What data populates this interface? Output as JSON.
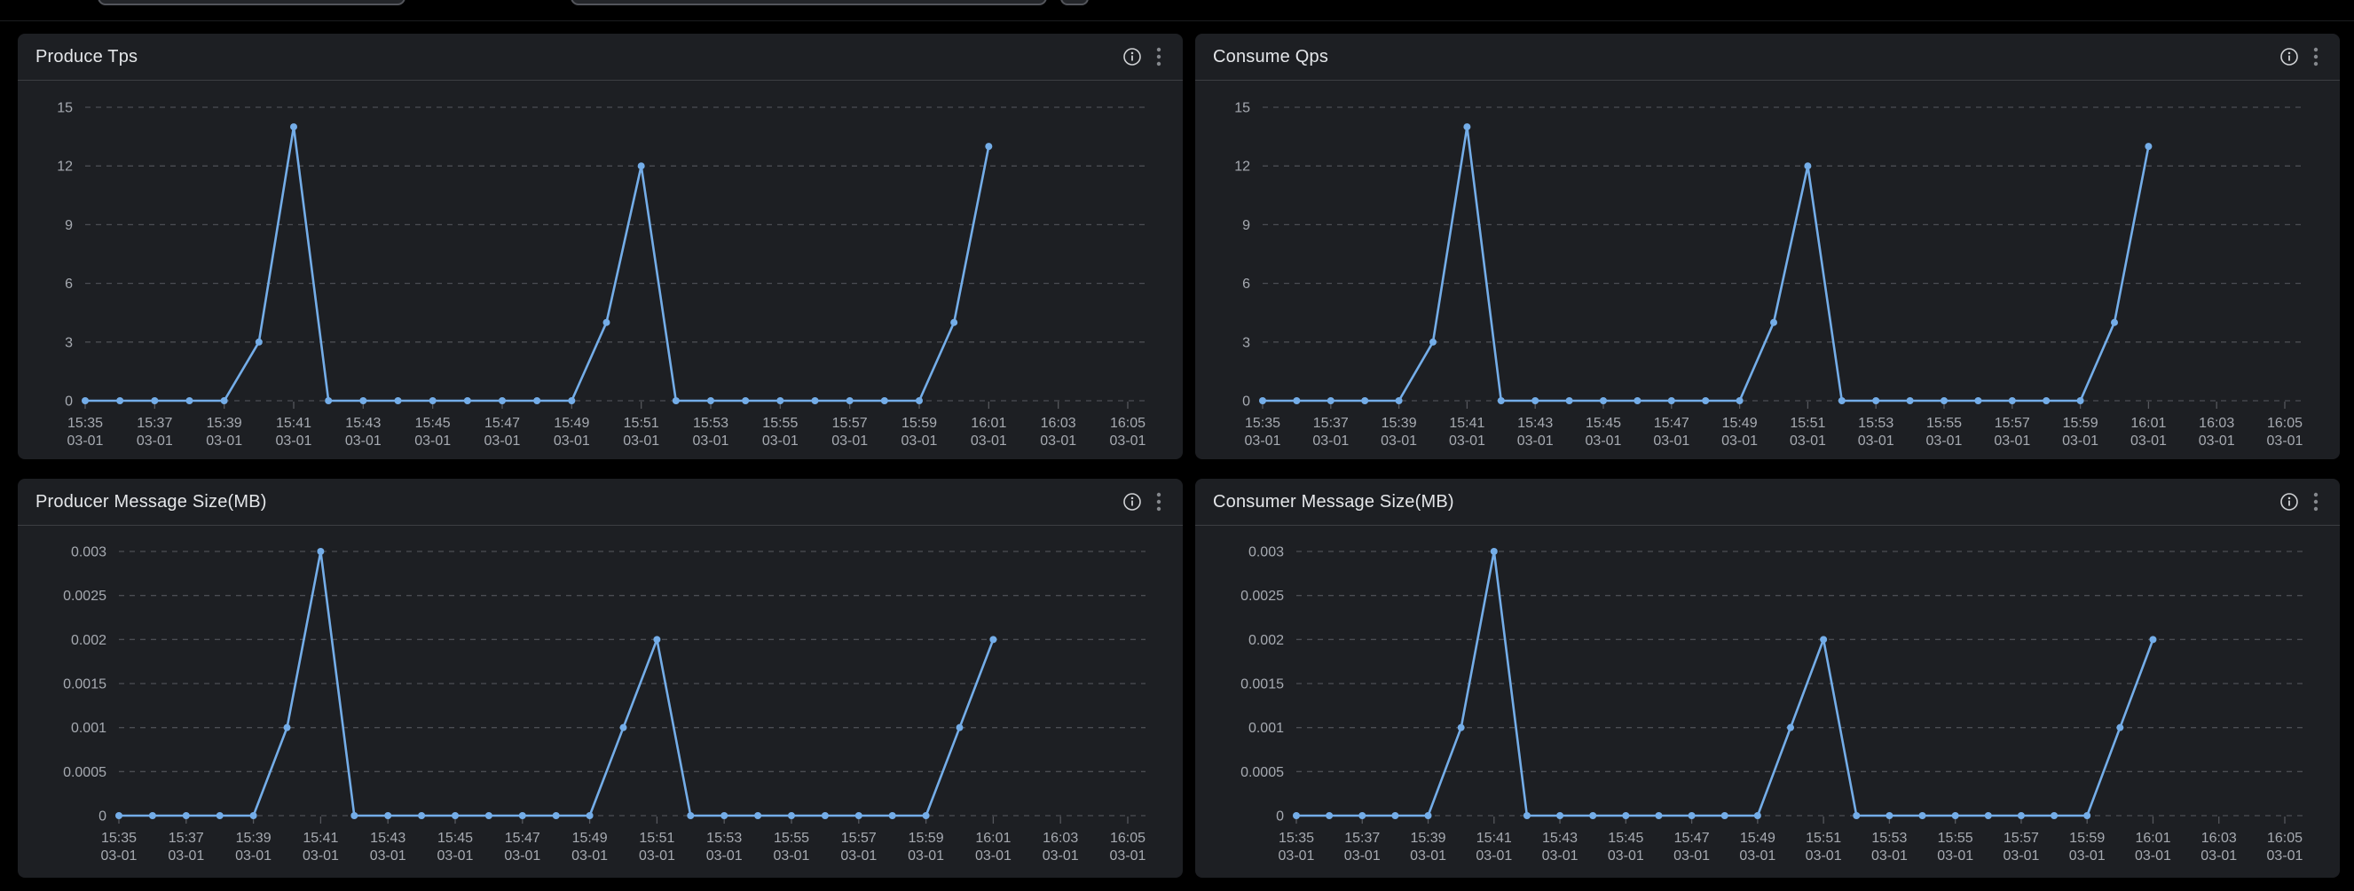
{
  "colors": {
    "page_bg": "#000000",
    "panel_bg": "#1d1f23",
    "panel_divider": "#3c3e42",
    "title_text": "#e4e6e9",
    "axis_label": "#a6aab1",
    "gridline": "#4b4d53",
    "tick": "#55575c",
    "series_line": "#74ade8",
    "info_icon": "#cfd1d4",
    "kebab_icon": "#85888d"
  },
  "topbar": {
    "elements": [
      {
        "name": "toolbar-input-primary"
      },
      {
        "name": "toolbar-input-secondary"
      },
      {
        "name": "toolbar-mini-button"
      }
    ]
  },
  "panels": [
    {
      "title": "Produce Tps",
      "icons": {
        "info": "info-icon",
        "menu": "kebab-menu-icon"
      }
    },
    {
      "title": "Consume Qps",
      "icons": {
        "info": "info-icon",
        "menu": "kebab-menu-icon"
      }
    },
    {
      "title": "Producer Message Size(MB)",
      "icons": {
        "info": "info-icon",
        "menu": "kebab-menu-icon"
      }
    },
    {
      "title": "Consumer Message Size(MB)",
      "icons": {
        "info": "info-icon",
        "menu": "kebab-menu-icon"
      }
    }
  ],
  "chart_data": [
    {
      "type": "line",
      "title": "Produce Tps",
      "xlabel": "",
      "ylabel": "",
      "x": [
        "15:35",
        "15:36",
        "15:37",
        "15:38",
        "15:39",
        "15:40",
        "15:41",
        "15:42",
        "15:43",
        "15:44",
        "15:45",
        "15:46",
        "15:47",
        "15:48",
        "15:49",
        "15:50",
        "15:51",
        "15:52",
        "15:53",
        "15:54",
        "15:55",
        "15:56",
        "15:57",
        "15:58",
        "15:59",
        "16:00",
        "16:01"
      ],
      "values": [
        0,
        0,
        0,
        0,
        0,
        3,
        14,
        0,
        0,
        0,
        0,
        0,
        0,
        0,
        0,
        4,
        12,
        0,
        0,
        0,
        0,
        0,
        0,
        0,
        0,
        4,
        13
      ],
      "axis_x_labels": [
        "15:35",
        "15:37",
        "15:39",
        "15:41",
        "15:43",
        "15:45",
        "15:47",
        "15:49",
        "15:51",
        "15:53",
        "15:55",
        "15:57",
        "15:59",
        "16:01",
        "16:03",
        "16:05"
      ],
      "axis_x_label_line2": "03-01",
      "axis_x_range": [
        "15:35",
        "16:05"
      ],
      "y_tick_labels": [
        "0",
        "3",
        "6",
        "9",
        "12",
        "15"
      ],
      "ylim": [
        0,
        15
      ],
      "grid": true,
      "legend": false,
      "line_color": "#74ade8"
    },
    {
      "type": "line",
      "title": "Consume Qps",
      "xlabel": "",
      "ylabel": "",
      "x": [
        "15:35",
        "15:36",
        "15:37",
        "15:38",
        "15:39",
        "15:40",
        "15:41",
        "15:42",
        "15:43",
        "15:44",
        "15:45",
        "15:46",
        "15:47",
        "15:48",
        "15:49",
        "15:50",
        "15:51",
        "15:52",
        "15:53",
        "15:54",
        "15:55",
        "15:56",
        "15:57",
        "15:58",
        "15:59",
        "16:00",
        "16:01"
      ],
      "values": [
        0,
        0,
        0,
        0,
        0,
        3,
        14,
        0,
        0,
        0,
        0,
        0,
        0,
        0,
        0,
        4,
        12,
        0,
        0,
        0,
        0,
        0,
        0,
        0,
        0,
        4,
        13
      ],
      "axis_x_labels": [
        "15:35",
        "15:37",
        "15:39",
        "15:41",
        "15:43",
        "15:45",
        "15:47",
        "15:49",
        "15:51",
        "15:53",
        "15:55",
        "15:57",
        "15:59",
        "16:01",
        "16:03",
        "16:05"
      ],
      "axis_x_label_line2": "03-01",
      "axis_x_range": [
        "15:35",
        "16:05"
      ],
      "y_tick_labels": [
        "0",
        "3",
        "6",
        "9",
        "12",
        "15"
      ],
      "ylim": [
        0,
        15
      ],
      "grid": true,
      "legend": false,
      "line_color": "#74ade8"
    },
    {
      "type": "line",
      "title": "Producer Message Size(MB)",
      "xlabel": "",
      "ylabel": "",
      "x": [
        "15:35",
        "15:36",
        "15:37",
        "15:38",
        "15:39",
        "15:40",
        "15:41",
        "15:42",
        "15:43",
        "15:44",
        "15:45",
        "15:46",
        "15:47",
        "15:48",
        "15:49",
        "15:50",
        "15:51",
        "15:52",
        "15:53",
        "15:54",
        "15:55",
        "15:56",
        "15:57",
        "15:58",
        "15:59",
        "16:00",
        "16:01"
      ],
      "values": [
        0,
        0,
        0,
        0,
        0,
        0.001,
        0.003,
        0,
        0,
        0,
        0,
        0,
        0,
        0,
        0,
        0.001,
        0.002,
        0,
        0,
        0,
        0,
        0,
        0,
        0,
        0,
        0.001,
        0.002
      ],
      "axis_x_labels": [
        "15:35",
        "15:37",
        "15:39",
        "15:41",
        "15:43",
        "15:45",
        "15:47",
        "15:49",
        "15:51",
        "15:53",
        "15:55",
        "15:57",
        "15:59",
        "16:01",
        "16:03",
        "16:05"
      ],
      "axis_x_label_line2": "03-01",
      "axis_x_range": [
        "15:35",
        "16:05"
      ],
      "y_tick_labels": [
        "0",
        "0.0005",
        "0.001",
        "0.0015",
        "0.002",
        "0.0025",
        "0.003"
      ],
      "ylim": [
        0,
        0.003
      ],
      "grid": true,
      "legend": false,
      "line_color": "#74ade8"
    },
    {
      "type": "line",
      "title": "Consumer Message Size(MB)",
      "xlabel": "",
      "ylabel": "",
      "x": [
        "15:35",
        "15:36",
        "15:37",
        "15:38",
        "15:39",
        "15:40",
        "15:41",
        "15:42",
        "15:43",
        "15:44",
        "15:45",
        "15:46",
        "15:47",
        "15:48",
        "15:49",
        "15:50",
        "15:51",
        "15:52",
        "15:53",
        "15:54",
        "15:55",
        "15:56",
        "15:57",
        "15:58",
        "15:59",
        "16:00",
        "16:01"
      ],
      "values": [
        0,
        0,
        0,
        0,
        0,
        0.001,
        0.003,
        0,
        0,
        0,
        0,
        0,
        0,
        0,
        0,
        0.001,
        0.002,
        0,
        0,
        0,
        0,
        0,
        0,
        0,
        0,
        0.001,
        0.002
      ],
      "axis_x_labels": [
        "15:35",
        "15:37",
        "15:39",
        "15:41",
        "15:43",
        "15:45",
        "15:47",
        "15:49",
        "15:51",
        "15:53",
        "15:55",
        "15:57",
        "15:59",
        "16:01",
        "16:03",
        "16:05"
      ],
      "axis_x_label_line2": "03-01",
      "axis_x_range": [
        "15:35",
        "16:05"
      ],
      "y_tick_labels": [
        "0",
        "0.0005",
        "0.001",
        "0.0015",
        "0.002",
        "0.0025",
        "0.003"
      ],
      "ylim": [
        0,
        0.003
      ],
      "grid": true,
      "legend": false,
      "line_color": "#74ade8"
    }
  ]
}
